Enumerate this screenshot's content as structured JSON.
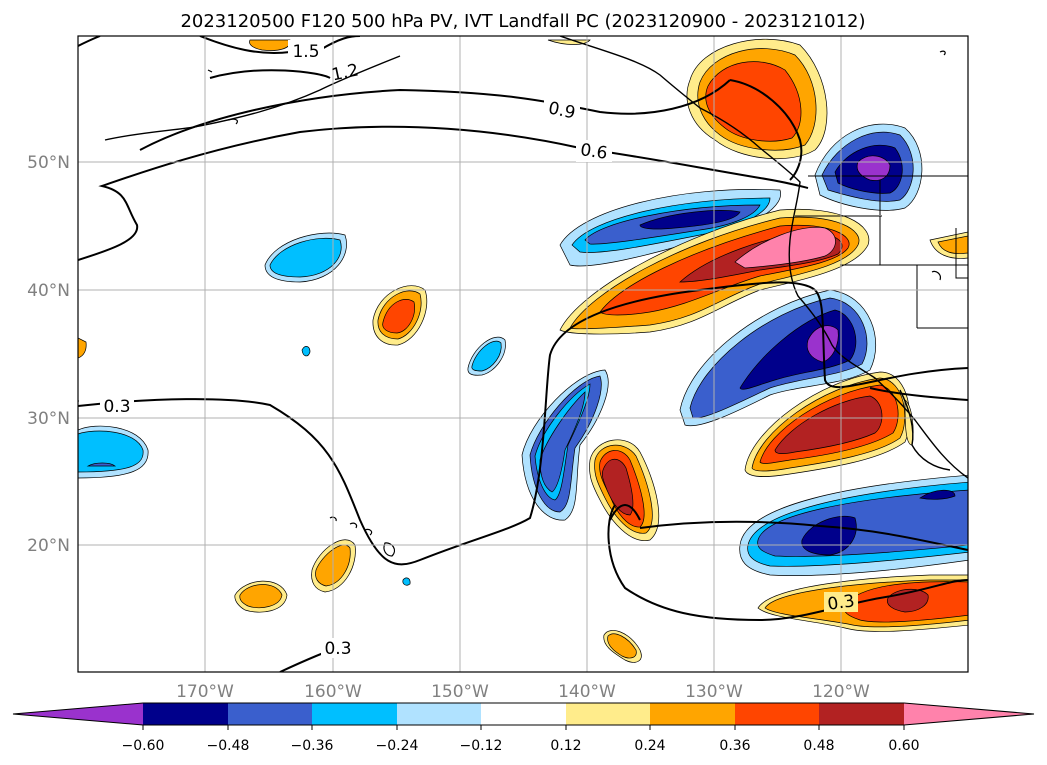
{
  "title": "2023120500 F120 500 hPa PV, IVT Landfall PC (2023120900 - 2023121012)",
  "lat_labels": [
    "50°N",
    "40°N",
    "30°N",
    "20°N"
  ],
  "lon_labels": [
    "170°W",
    "160°W",
    "150°W",
    "140°W",
    "130°W",
    "120°W"
  ],
  "contour_labels": [
    "1.5",
    "1.2",
    "0.9",
    "0.6",
    "0.3",
    "0.3",
    "0.3"
  ],
  "colorbar": {
    "ticks": [
      "−0.60",
      "−0.48",
      "−0.36",
      "−0.24",
      "−0.12",
      "0.12",
      "0.24",
      "0.36",
      "0.48",
      "0.60"
    ],
    "colors": [
      "#9a32cd",
      "#00008b",
      "#3a5fcd",
      "#00bfff",
      "#b0e2ff",
      "#ffffff",
      "#ffec8b",
      "#ffa500",
      "#ff4500",
      "#b22222",
      "#ff82ab"
    ]
  }
}
